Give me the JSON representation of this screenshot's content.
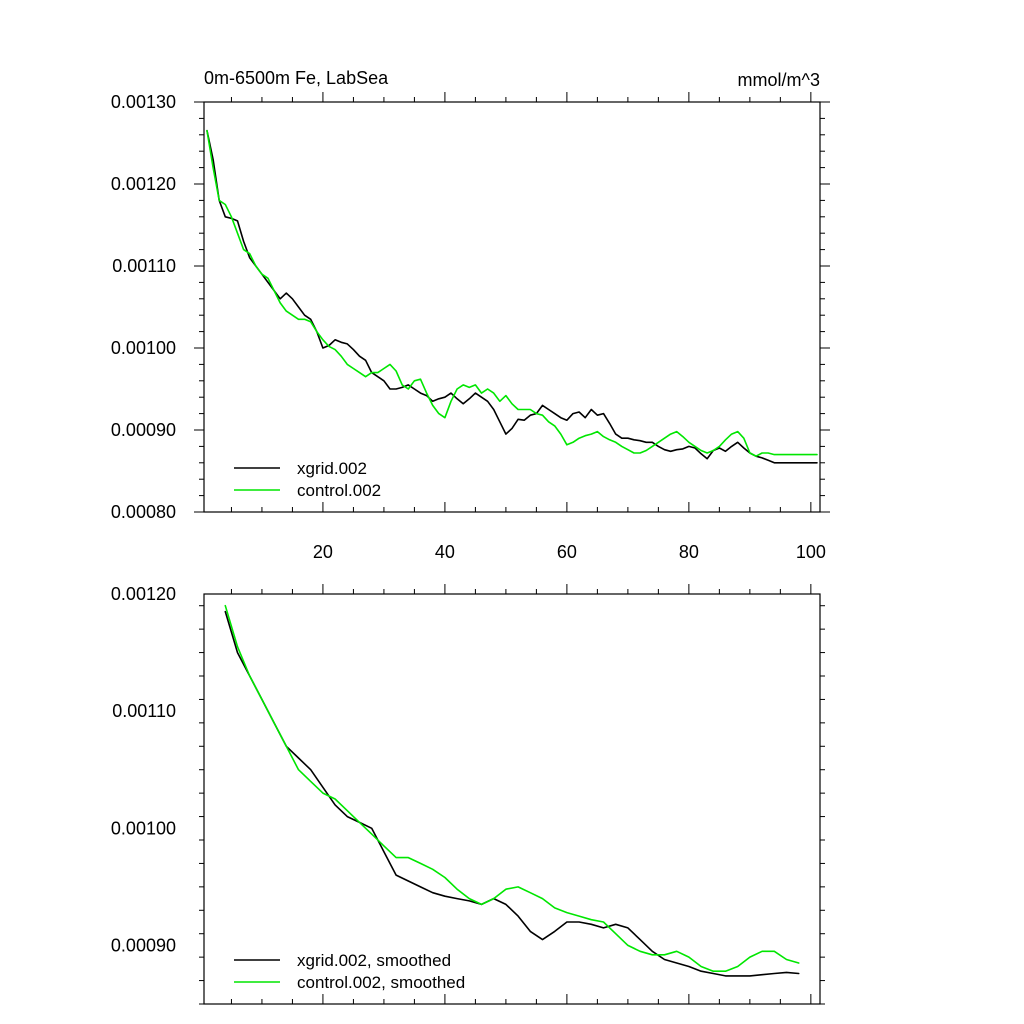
{
  "chart_data": [
    {
      "type": "line",
      "title_left": "0m-6500m Fe, LabSea",
      "title_right": "mmol/m^3",
      "xlim": [
        0.5,
        101.5
      ],
      "ylim": [
        0.0008,
        0.0013
      ],
      "xticks": [
        20,
        40,
        60,
        80,
        100
      ],
      "xtick_labels": [
        "20",
        "40",
        "60",
        "80",
        "100"
      ],
      "yticks": [
        0.0008,
        0.0009,
        0.001,
        0.0011,
        0.0012,
        0.0013
      ],
      "ytick_labels": [
        "0.00080",
        "0.00090",
        "0.00100",
        "0.00110",
        "0.00120",
        "0.00130"
      ],
      "legend_position": "bottom-left",
      "series": [
        {
          "name": "xgrid.002",
          "color": "#000000",
          "x": [
            1,
            2,
            3,
            4,
            5,
            6,
            7,
            8,
            9,
            10,
            11,
            12,
            13,
            14,
            15,
            16,
            17,
            18,
            19,
            20,
            21,
            22,
            23,
            24,
            25,
            26,
            27,
            28,
            29,
            30,
            31,
            32,
            33,
            34,
            35,
            36,
            37,
            38,
            39,
            40,
            41,
            42,
            43,
            44,
            45,
            46,
            47,
            48,
            49,
            50,
            51,
            52,
            53,
            54,
            55,
            56,
            57,
            58,
            59,
            60,
            61,
            62,
            63,
            64,
            65,
            66,
            67,
            68,
            69,
            70,
            71,
            72,
            73,
            74,
            75,
            76,
            77,
            78,
            79,
            80,
            81,
            82,
            83,
            84,
            85,
            86,
            87,
            88,
            89,
            90,
            91,
            92,
            93,
            94,
            95,
            96,
            97,
            98,
            99,
            100,
            101
          ],
          "y": [
            0.001265,
            0.00123,
            0.00118,
            0.00116,
            0.001158,
            0.001155,
            0.00113,
            0.00111,
            0.0011,
            0.00109,
            0.00108,
            0.00107,
            0.00106,
            0.001067,
            0.00106,
            0.00105,
            0.00104,
            0.001035,
            0.00102,
            0.001,
            0.001003,
            0.00101,
            0.001007,
            0.001005,
            0.000998,
            0.00099,
            0.000985,
            0.00097,
            0.000965,
            0.00096,
            0.00095,
            0.00095,
            0.000952,
            0.000955,
            0.00095,
            0.000945,
            0.000942,
            0.000935,
            0.000938,
            0.00094,
            0.000945,
            0.000938,
            0.000932,
            0.000938,
            0.000945,
            0.00094,
            0.000935,
            0.000925,
            0.00091,
            0.000895,
            0.000902,
            0.000913,
            0.000912,
            0.000918,
            0.00092,
            0.00093,
            0.000925,
            0.00092,
            0.000915,
            0.000912,
            0.00092,
            0.000922,
            0.000915,
            0.000925,
            0.000918,
            0.00092,
            0.000908,
            0.000895,
            0.00089,
            0.00089,
            0.000888,
            0.000887,
            0.000885,
            0.000885,
            0.00088,
            0.000876,
            0.000874,
            0.000876,
            0.000877,
            0.00088,
            0.000878,
            0.000871,
            0.000865,
            0.000875,
            0.000878,
            0.000874,
            0.00088,
            0.000885,
            0.000878,
            0.000872,
            0.000868,
            0.000866,
            0.000863,
            0.00086,
            0.00086,
            0.00086,
            0.00086,
            0.00086,
            0.00086,
            0.00086,
            0.00086
          ]
        },
        {
          "name": "control.002",
          "color": "#00e600",
          "x": [
            1,
            2,
            3,
            4,
            5,
            6,
            7,
            8,
            9,
            10,
            11,
            12,
            13,
            14,
            15,
            16,
            17,
            18,
            19,
            20,
            21,
            22,
            23,
            24,
            25,
            26,
            27,
            28,
            29,
            30,
            31,
            32,
            33,
            34,
            35,
            36,
            37,
            38,
            39,
            40,
            41,
            42,
            43,
            44,
            45,
            46,
            47,
            48,
            49,
            50,
            51,
            52,
            53,
            54,
            55,
            56,
            57,
            58,
            59,
            60,
            61,
            62,
            63,
            64,
            65,
            66,
            67,
            68,
            69,
            70,
            71,
            72,
            73,
            74,
            75,
            76,
            77,
            78,
            79,
            80,
            81,
            82,
            83,
            84,
            85,
            86,
            87,
            88,
            89,
            90,
            91,
            92,
            93,
            94,
            95,
            96,
            97,
            98,
            99,
            100,
            101
          ],
          "y": [
            0.001265,
            0.00122,
            0.00118,
            0.001175,
            0.00116,
            0.00114,
            0.00112,
            0.001115,
            0.0011,
            0.00109,
            0.001085,
            0.00107,
            0.001055,
            0.001045,
            0.00104,
            0.001035,
            0.001035,
            0.001032,
            0.00102,
            0.00101,
            0.001002,
            0.000998,
            0.00099,
            0.00098,
            0.000975,
            0.00097,
            0.000965,
            0.00097,
            0.00097,
            0.000975,
            0.00098,
            0.000972,
            0.000955,
            0.00095,
            0.00096,
            0.000962,
            0.000945,
            0.00093,
            0.00092,
            0.000915,
            0.000935,
            0.00095,
            0.000955,
            0.000952,
            0.000955,
            0.000945,
            0.00095,
            0.000945,
            0.000935,
            0.000942,
            0.000932,
            0.000925,
            0.000925,
            0.000925,
            0.00092,
            0.000918,
            0.00091,
            0.000905,
            0.000895,
            0.000882,
            0.000885,
            0.00089,
            0.000893,
            0.000895,
            0.000898,
            0.000892,
            0.000888,
            0.000885,
            0.00088,
            0.000876,
            0.000872,
            0.000872,
            0.000875,
            0.00088,
            0.000885,
            0.00089,
            0.000895,
            0.000898,
            0.000892,
            0.000885,
            0.00088,
            0.000875,
            0.000872,
            0.000875,
            0.00088,
            0.000888,
            0.000895,
            0.000898,
            0.00089,
            0.000872,
            0.000868,
            0.000872,
            0.000872,
            0.00087,
            0.00087,
            0.00087,
            0.00087,
            0.00087,
            0.00087,
            0.00087,
            0.00087
          ]
        }
      ]
    },
    {
      "type": "line",
      "xlim": [
        0.5,
        101.5
      ],
      "ylim": [
        0.00085,
        0.0012
      ],
      "xticks": [
        20,
        40,
        60,
        80,
        100
      ],
      "yticks": [
        0.0009,
        0.001,
        0.0011,
        0.0012
      ],
      "ytick_labels": [
        "0.00090",
        "0.00100",
        "0.00110",
        "0.00120"
      ],
      "legend_position": "bottom-left",
      "series": [
        {
          "name": "xgrid.002, smoothed",
          "color": "#000000",
          "x": [
            4,
            6,
            8,
            10,
            12,
            14,
            16,
            18,
            20,
            22,
            24,
            26,
            28,
            30,
            32,
            34,
            36,
            38,
            40,
            42,
            44,
            46,
            48,
            50,
            52,
            54,
            56,
            58,
            60,
            62,
            64,
            66,
            68,
            70,
            72,
            74,
            76,
            78,
            80,
            82,
            84,
            86,
            88,
            90,
            92,
            94,
            96,
            98
          ],
          "y": [
            0.001185,
            0.00115,
            0.00113,
            0.00111,
            0.00109,
            0.00107,
            0.00106,
            0.00105,
            0.001035,
            0.00102,
            0.00101,
            0.001005,
            0.001,
            0.00098,
            0.00096,
            0.000955,
            0.00095,
            0.000945,
            0.000942,
            0.00094,
            0.000938,
            0.000935,
            0.00094,
            0.000935,
            0.000925,
            0.000912,
            0.000905,
            0.000912,
            0.00092,
            0.00092,
            0.000918,
            0.000915,
            0.000918,
            0.000915,
            0.000905,
            0.000895,
            0.000888,
            0.000885,
            0.000882,
            0.000878,
            0.000876,
            0.000874,
            0.000874,
            0.000874,
            0.000875,
            0.000876,
            0.000877,
            0.000876
          ]
        },
        {
          "name": "control.002, smoothed",
          "color": "#00e600",
          "x": [
            4,
            6,
            8,
            10,
            12,
            14,
            16,
            18,
            20,
            22,
            24,
            26,
            28,
            30,
            32,
            34,
            36,
            38,
            40,
            42,
            44,
            46,
            48,
            50,
            52,
            54,
            56,
            58,
            60,
            62,
            64,
            66,
            68,
            70,
            72,
            74,
            76,
            78,
            80,
            82,
            84,
            86,
            88,
            90,
            92,
            94,
            96,
            98
          ],
          "y": [
            0.00119,
            0.001155,
            0.00113,
            0.00111,
            0.00109,
            0.00107,
            0.00105,
            0.00104,
            0.00103,
            0.001025,
            0.001015,
            0.001005,
            0.000995,
            0.000985,
            0.000975,
            0.000975,
            0.00097,
            0.000965,
            0.000958,
            0.000948,
            0.00094,
            0.000935,
            0.00094,
            0.000948,
            0.00095,
            0.000945,
            0.00094,
            0.000932,
            0.000928,
            0.000925,
            0.000922,
            0.00092,
            0.00091,
            0.0009,
            0.000895,
            0.000892,
            0.000892,
            0.000895,
            0.00089,
            0.000882,
            0.000878,
            0.000878,
            0.000882,
            0.00089,
            0.000895,
            0.000895,
            0.000888,
            0.000885
          ]
        }
      ]
    }
  ]
}
